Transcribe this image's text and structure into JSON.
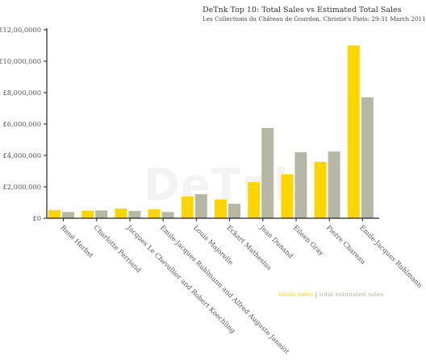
{
  "title": "DeTnk Top 10: Total Sales vs Estimated Total Sales",
  "subtitle": "Les Collections du Château de Gourdon, Christie's Paris: 29-31 March 2011",
  "watermark": "DeTnk",
  "colors": {
    "totals_sales": "#FFD500",
    "total_estimated_sales": "#B7B7A6",
    "axis": "#222222",
    "tick_text": "#555555"
  },
  "legend": {
    "totals_label": "totals sales",
    "separator": "|",
    "estimated_label": "total estimated sales"
  },
  "chart_data": {
    "type": "bar",
    "title": "DeTnk Top 10: Total Sales vs Estimated Total Sales",
    "subtitle": "Les Collections du Château de Gourdon, Christie's Paris: 29-31 March 2011",
    "xlabel": "",
    "ylabel": "",
    "ylim": [
      0,
      12000000
    ],
    "yticks": [
      0,
      2000000,
      4000000,
      6000000,
      8000000,
      10000000,
      12000000
    ],
    "ytick_labels": [
      "£0",
      "£2,000,000",
      "£4,000,000",
      "£6,000,000",
      "£8,000,000",
      "£10,000,000",
      "£12,00,0000"
    ],
    "grid": false,
    "legend_position": "bottom-right",
    "categories": [
      "René Herbst",
      "Charlotte Perriand",
      "Jacques Le Chevallier and Robert Koechling",
      "Emile-Jacques Ruhlmann and Alfred Auguste Janniot",
      "Louis Majorelle",
      "Eckart Muthesius",
      "Jean Dunand",
      "Eileen Gray",
      "Pierre Chareau",
      "Emile-Jacques Ruhlmann"
    ],
    "series": [
      {
        "name": "totals sales",
        "values": [
          520000,
          480000,
          620000,
          580000,
          1380000,
          1200000,
          2300000,
          2800000,
          3600000,
          11000000
        ]
      },
      {
        "name": "total estimated sales",
        "values": [
          400000,
          500000,
          470000,
          400000,
          1530000,
          930000,
          5750000,
          4200000,
          4250000,
          7700000
        ]
      }
    ]
  }
}
